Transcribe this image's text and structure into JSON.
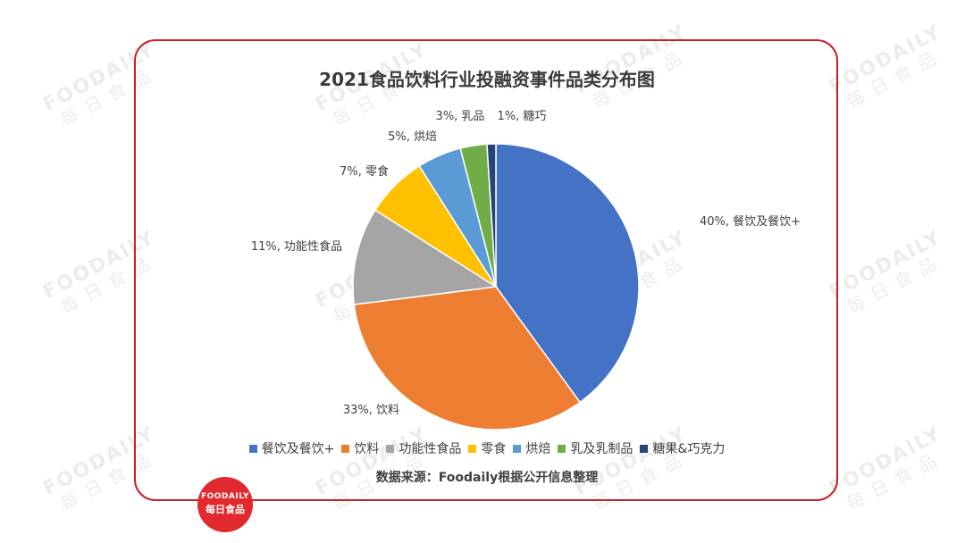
{
  "watermark": {
    "en": "FOODAILY",
    "cn": "每日食品"
  },
  "logo": {
    "en": "FOODAILY",
    "cn": "每日食品"
  },
  "chart_data": {
    "type": "pie",
    "title": "2021食品饮料行业投融资事件品类分布图",
    "source": "数据来源：Foodaily根据公开信息整理",
    "legend_position": "bottom",
    "slices": [
      {
        "name": "餐饮及餐饮+",
        "value": 40,
        "data_label": "40%, 餐饮及餐饮+",
        "color": "#4472c4"
      },
      {
        "name": "饮料",
        "value": 33,
        "data_label": "33%, 饮料",
        "color": "#ed7d31"
      },
      {
        "name": "功能性食品",
        "value": 11,
        "data_label": "11%, 功能性食品",
        "color": "#a5a5a5"
      },
      {
        "name": "零食",
        "value": 7,
        "data_label": "7%, 零食",
        "color": "#ffc000"
      },
      {
        "name": "烘焙",
        "value": 5,
        "data_label": "5%, 烘焙",
        "color": "#5b9bd5"
      },
      {
        "name": "乳及乳制品",
        "value": 3,
        "data_label": "3%, 乳品",
        "color": "#70ad47"
      },
      {
        "name": "糖果&巧克力",
        "value": 1,
        "data_label": "1%, 糖巧",
        "color": "#264478"
      }
    ]
  }
}
